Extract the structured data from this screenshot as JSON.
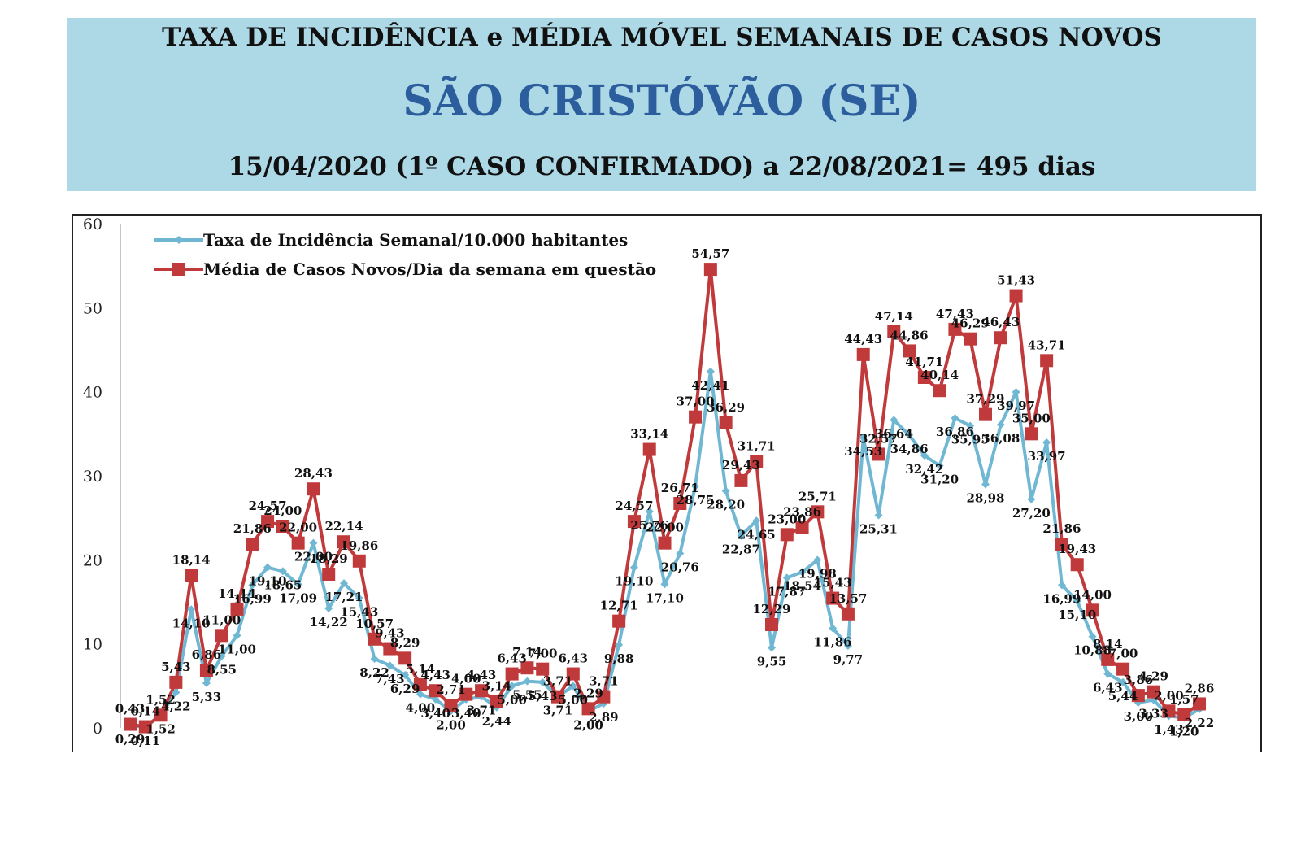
{
  "header": {
    "title": "TAXA DE INCIDÊNCIA e MÉDIA MÓVEL SEMANAIS DE CASOS NOVOS",
    "city": "SÃO CRISTÓVÃO (SE)",
    "period": "15/04/2020 (1º CASO CONFIRMADO) a 22/08/2021= 495 dias"
  },
  "colors": {
    "header_bg": "#add8e6",
    "city_text": "#2c5d9c",
    "incidence": "#6fb7d3",
    "average": "#c0393b"
  },
  "chart_data": {
    "type": "line",
    "ylim": [
      0,
      60
    ],
    "yticks": [
      0,
      10,
      20,
      30,
      40,
      50,
      60
    ],
    "legend_position": "top-left",
    "grid": false,
    "series": [
      {
        "name": "Taxa de Incidência Semanal/10.000 habitantes",
        "marker": "diamond",
        "values": [
          0.29,
          0.11,
          1.52,
          4.22,
          14.1,
          5.33,
          8.55,
          11.0,
          16.99,
          19.1,
          18.65,
          17.09,
          22.0,
          14.22,
          17.21,
          15.43,
          8.22,
          7.43,
          6.29,
          4.0,
          3.4,
          2.0,
          3.4,
          3.71,
          2.44,
          5.0,
          5.55,
          5.43,
          3.71,
          5.0,
          2.0,
          2.89,
          9.88,
          19.1,
          25.76,
          17.1,
          20.76,
          28.75,
          42.41,
          28.2,
          22.87,
          24.65,
          9.55,
          17.87,
          18.54,
          19.98,
          11.86,
          9.77,
          34.53,
          25.31,
          36.64,
          34.86,
          32.42,
          31.2,
          36.86,
          35.95,
          28.98,
          36.08,
          39.97,
          27.2,
          33.97,
          16.99,
          15.1,
          10.88,
          6.43,
          5.44,
          3.0,
          3.33,
          1.43,
          1.2,
          2.22
        ],
        "labels": [
          "0,29",
          "0,11",
          "1,52",
          "4,22",
          "14,10",
          "5,33",
          "8,55",
          "11,00",
          "16,99",
          "19,10",
          "18,65",
          "17,09",
          "22,00",
          "14,22",
          "17,21",
          "15,43",
          "8,22",
          "7,43",
          "6,29",
          "4,00",
          "3,40",
          "2,00",
          "3,40",
          "3,71",
          "2,44",
          "5,00",
          "5,55",
          "5,43",
          "3,71",
          "5,00",
          "2,00",
          "2,89",
          "9,88",
          "19,10",
          "25,76",
          "17,10",
          "20,76",
          "28,75",
          "42,41",
          "28,20",
          "22,87",
          "24,65",
          "9,55",
          "17,87",
          "18,54",
          "19,98",
          "11,86",
          "9,77",
          "34,53",
          "25,31",
          "36,64",
          "34,86",
          "32,42",
          "31,20",
          "36,86",
          "35,95",
          "28,98",
          "36,08",
          "39,97",
          "27,20",
          "33,97",
          "16,99",
          "15,10",
          "10,88",
          "6,43",
          "5,44",
          "3,00",
          "3,33",
          "1,43",
          "1,20",
          "2,22"
        ]
      },
      {
        "name": "Média de Casos Novos/Dia da semana em questão",
        "marker": "square",
        "values": [
          0.43,
          0.14,
          1.52,
          5.43,
          18.14,
          6.86,
          11.0,
          14.14,
          21.86,
          24.57,
          24.0,
          22.0,
          28.43,
          18.29,
          22.14,
          19.86,
          10.57,
          9.43,
          8.29,
          5.14,
          4.43,
          2.71,
          4.0,
          4.43,
          3.14,
          6.43,
          7.14,
          7.0,
          3.71,
          6.43,
          2.29,
          3.71,
          12.71,
          24.57,
          33.14,
          22.0,
          26.71,
          37.0,
          54.57,
          36.29,
          29.43,
          31.71,
          12.29,
          23.0,
          23.86,
          25.71,
          15.43,
          13.57,
          44.43,
          32.57,
          47.14,
          44.86,
          41.71,
          40.14,
          47.43,
          46.29,
          37.29,
          46.43,
          51.43,
          35.0,
          43.71,
          21.86,
          19.43,
          14.0,
          8.14,
          7.0,
          3.86,
          4.29,
          2.0,
          1.57,
          2.86
        ],
        "labels": [
          "0,43",
          "0,14",
          "1,52",
          "5,43",
          "18,14",
          "6,86",
          "11,00",
          "14,14",
          "21,86",
          "24,57",
          "24,00",
          "22,00",
          "28,43",
          "18,29",
          "22,14",
          "19,86",
          "10,57",
          "9,43",
          "8,29",
          "5,14",
          "4,43",
          "2,71",
          "4,00",
          "4,43",
          "3,14",
          "6,43",
          "7,14",
          "7,00",
          "3,71",
          "6,43",
          "2,29",
          "3,71",
          "12,71",
          "24,57",
          "33,14",
          "22,00",
          "26,71",
          "37,00",
          "54,57",
          "36,29",
          "29,43",
          "31,71",
          "12,29",
          "23,00",
          "23,86",
          "25,71",
          "15,43",
          "13,57",
          "44,43",
          "32,57",
          "47,14",
          "44,86",
          "41,71",
          "40,14",
          "47,43",
          "46,29",
          "37,29",
          "46,43",
          "51,43",
          "35,00",
          "43,71",
          "21,86",
          "19,43",
          "14,00",
          "8,14",
          "7,00",
          "3,86",
          "4,29",
          "2,00",
          "1,57",
          "2,86"
        ]
      }
    ]
  }
}
